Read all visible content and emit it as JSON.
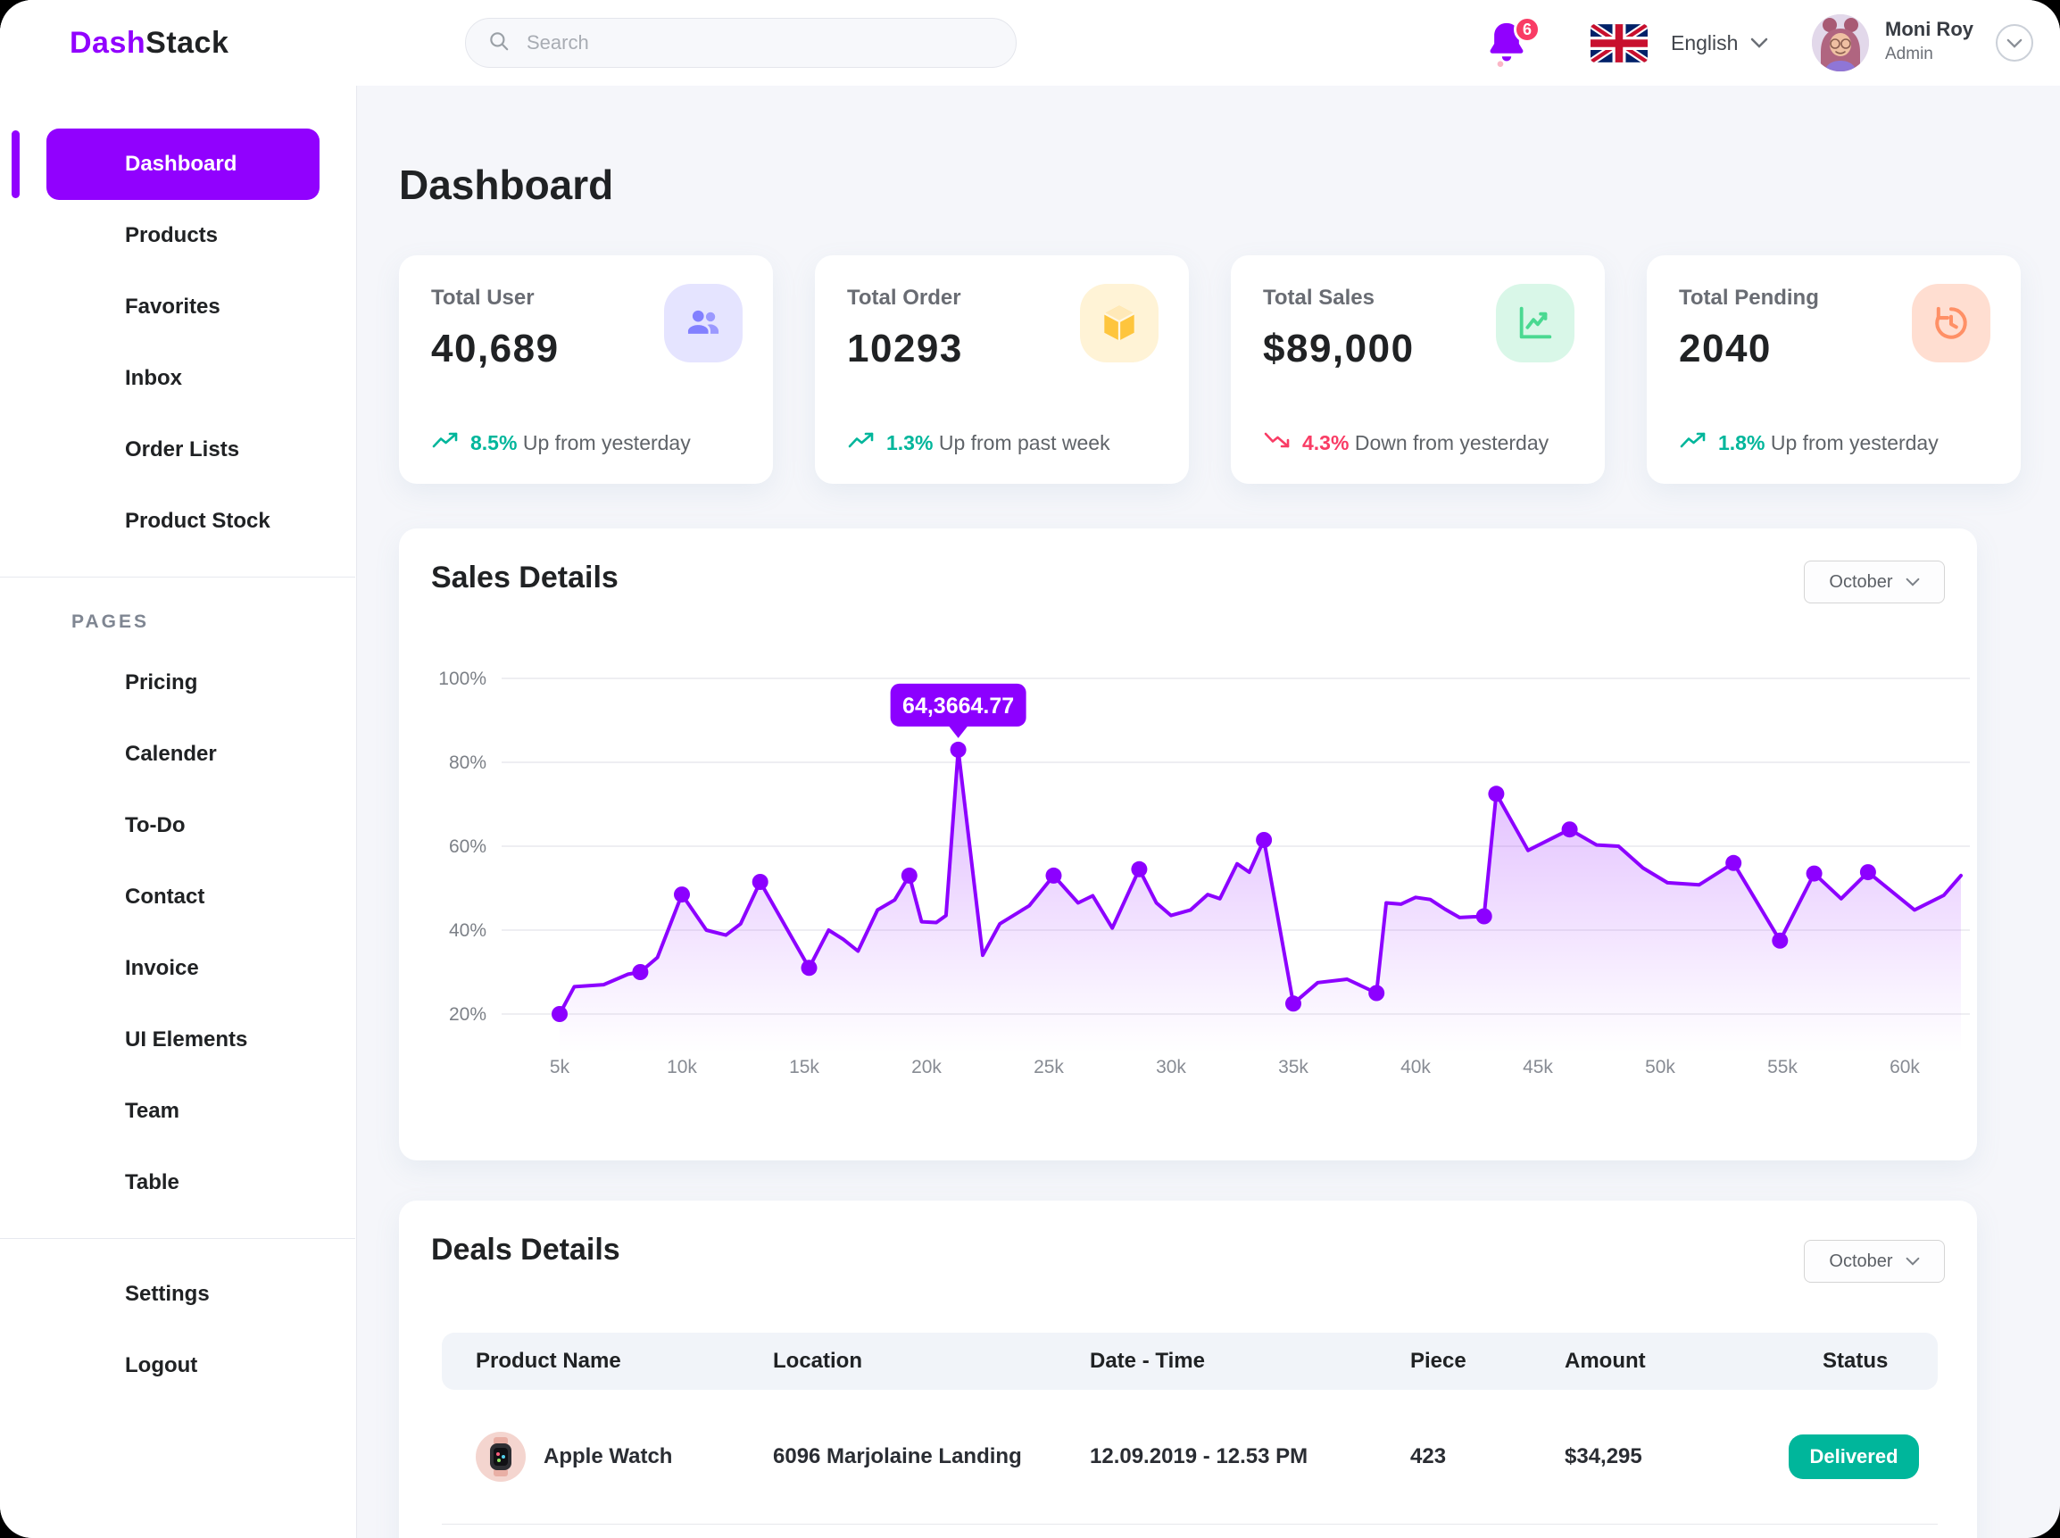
{
  "colors": {
    "accent": "#9101FE",
    "chart_line": "#8C00FF",
    "page_bg": "#F5F6FA",
    "surface": "#FFFFFF",
    "trend_up": "#00B69B",
    "trend_down": "#F93C65",
    "status_delivered": "#00B69B",
    "table_header_bg": "#F1F4F9",
    "text_dark": "#202224",
    "text_gray": "#5F6368"
  },
  "header": {
    "logo_part1": "Dash",
    "logo_part2": "Stack",
    "search_placeholder": "Search",
    "notification_count": "6",
    "language": "English",
    "user": {
      "name": "Moni Roy",
      "role": "Admin"
    }
  },
  "sidebar": {
    "main_items": [
      {
        "label": "Dashboard",
        "active": true
      },
      {
        "label": "Products",
        "active": false
      },
      {
        "label": "Favorites",
        "active": false
      },
      {
        "label": "Inbox",
        "active": false
      },
      {
        "label": "Order Lists",
        "active": false
      },
      {
        "label": "Product Stock",
        "active": false
      }
    ],
    "section_label": "PAGES",
    "page_items": [
      {
        "label": "Pricing"
      },
      {
        "label": "Calender"
      },
      {
        "label": "To-Do"
      },
      {
        "label": "Contact"
      },
      {
        "label": "Invoice"
      },
      {
        "label": "UI Elements"
      },
      {
        "label": "Team"
      },
      {
        "label": "Table"
      }
    ],
    "footer_items": [
      {
        "label": "Settings"
      },
      {
        "label": "Logout"
      }
    ]
  },
  "page": {
    "title": "Dashboard"
  },
  "stat_cards": [
    {
      "label": "Total User",
      "value": "40,689",
      "icon": "users-icon",
      "icon_bg": "#E5E4FF",
      "icon_color": "#8280FF",
      "trend": {
        "direction": "up",
        "percent": "8.5%",
        "text": "Up from yesterday",
        "color": "#00B69B"
      }
    },
    {
      "label": "Total Order",
      "value": "10293",
      "icon": "box-icon",
      "icon_bg": "#FFF3D6",
      "icon_color": "#FEC53D",
      "trend": {
        "direction": "up",
        "percent": "1.3%",
        "text": "Up from past week",
        "color": "#00B69B"
      }
    },
    {
      "label": "Total Sales",
      "value": "$89,000",
      "icon": "chart-line-icon",
      "icon_bg": "#D9F7E8",
      "icon_color": "#4AD991",
      "trend": {
        "direction": "down",
        "percent": "4.3%",
        "text": "Down from yesterday",
        "color": "#F93C65"
      }
    },
    {
      "label": "Total Pending",
      "value": "2040",
      "icon": "history-clock-icon",
      "icon_bg": "#FFDED1",
      "icon_color": "#FF9066",
      "trend": {
        "direction": "up",
        "percent": "1.8%",
        "text": "Up from yesterday",
        "color": "#00B69B"
      }
    }
  ],
  "sales_section": {
    "title": "Sales Details",
    "period": "October"
  },
  "chart_data": {
    "type": "area",
    "title": "Sales Details",
    "x_unit": "thousands",
    "x_tick_values": [
      5,
      10,
      15,
      20,
      25,
      30,
      35,
      40,
      45,
      50,
      55,
      60
    ],
    "x_ticks": [
      "5k",
      "10k",
      "15k",
      "20k",
      "25k",
      "30k",
      "35k",
      "40k",
      "45k",
      "50k",
      "55k",
      "60k"
    ],
    "y_tick_values": [
      20,
      40,
      60,
      80,
      100
    ],
    "y_ticks": [
      "20%",
      "40%",
      "60%",
      "80%",
      "100%"
    ],
    "ylim": [
      20,
      100
    ],
    "grid": true,
    "legend": false,
    "tooltip": {
      "point_x": 21.3,
      "label": "64,3664.77"
    },
    "points": [
      {
        "x": 5,
        "y": 20,
        "dot": true
      },
      {
        "x": 5.6,
        "y": 26.5,
        "dot": false
      },
      {
        "x": 6.8,
        "y": 27,
        "dot": false
      },
      {
        "x": 7.8,
        "y": 29.5,
        "dot": false
      },
      {
        "x": 8.3,
        "y": 30,
        "dot": true
      },
      {
        "x": 9,
        "y": 33.5,
        "dot": false
      },
      {
        "x": 10,
        "y": 48.5,
        "dot": true
      },
      {
        "x": 11,
        "y": 40,
        "dot": false
      },
      {
        "x": 11.8,
        "y": 38.8,
        "dot": false
      },
      {
        "x": 12.4,
        "y": 41.5,
        "dot": false
      },
      {
        "x": 13.2,
        "y": 51.5,
        "dot": true
      },
      {
        "x": 15.2,
        "y": 31,
        "dot": true
      },
      {
        "x": 16,
        "y": 40,
        "dot": false
      },
      {
        "x": 16.6,
        "y": 37.8,
        "dot": false
      },
      {
        "x": 17.2,
        "y": 35,
        "dot": false
      },
      {
        "x": 18,
        "y": 44.8,
        "dot": false
      },
      {
        "x": 18.7,
        "y": 47.2,
        "dot": false
      },
      {
        "x": 19.3,
        "y": 53,
        "dot": true
      },
      {
        "x": 19.8,
        "y": 42,
        "dot": false
      },
      {
        "x": 20.4,
        "y": 41.8,
        "dot": false
      },
      {
        "x": 20.8,
        "y": 43.5,
        "dot": false
      },
      {
        "x": 21.3,
        "y": 83,
        "dot": true
      },
      {
        "x": 22.3,
        "y": 34,
        "dot": false
      },
      {
        "x": 23,
        "y": 41.5,
        "dot": false
      },
      {
        "x": 24.2,
        "y": 45.8,
        "dot": false
      },
      {
        "x": 25.2,
        "y": 53,
        "dot": true
      },
      {
        "x": 26.2,
        "y": 46.5,
        "dot": false
      },
      {
        "x": 26.8,
        "y": 48.2,
        "dot": false
      },
      {
        "x": 27.6,
        "y": 40.5,
        "dot": false
      },
      {
        "x": 28.7,
        "y": 54.5,
        "dot": true
      },
      {
        "x": 29.4,
        "y": 46.5,
        "dot": false
      },
      {
        "x": 30,
        "y": 43.5,
        "dot": false
      },
      {
        "x": 30.8,
        "y": 44.8,
        "dot": false
      },
      {
        "x": 31.5,
        "y": 48.5,
        "dot": false
      },
      {
        "x": 32,
        "y": 47.5,
        "dot": false
      },
      {
        "x": 32.7,
        "y": 55.8,
        "dot": false
      },
      {
        "x": 33.2,
        "y": 53.8,
        "dot": false
      },
      {
        "x": 33.8,
        "y": 61.5,
        "dot": true
      },
      {
        "x": 35,
        "y": 22.5,
        "dot": true
      },
      {
        "x": 36,
        "y": 27.5,
        "dot": false
      },
      {
        "x": 37.2,
        "y": 28.3,
        "dot": false
      },
      {
        "x": 38.4,
        "y": 25,
        "dot": true
      },
      {
        "x": 38.8,
        "y": 46.5,
        "dot": false
      },
      {
        "x": 39.4,
        "y": 46.2,
        "dot": false
      },
      {
        "x": 40,
        "y": 47.8,
        "dot": false
      },
      {
        "x": 40.6,
        "y": 47.3,
        "dot": false
      },
      {
        "x": 41.2,
        "y": 45,
        "dot": false
      },
      {
        "x": 41.8,
        "y": 43,
        "dot": false
      },
      {
        "x": 42.8,
        "y": 43.3,
        "dot": true
      },
      {
        "x": 43.3,
        "y": 72.5,
        "dot": true
      },
      {
        "x": 44.6,
        "y": 59,
        "dot": false
      },
      {
        "x": 46.3,
        "y": 64,
        "dot": true
      },
      {
        "x": 47.4,
        "y": 60.3,
        "dot": false
      },
      {
        "x": 48.3,
        "y": 60,
        "dot": false
      },
      {
        "x": 49.3,
        "y": 54.8,
        "dot": false
      },
      {
        "x": 50.3,
        "y": 51.3,
        "dot": false
      },
      {
        "x": 51.6,
        "y": 50.8,
        "dot": false
      },
      {
        "x": 53,
        "y": 56,
        "dot": true
      },
      {
        "x": 54.9,
        "y": 37.5,
        "dot": true
      },
      {
        "x": 56.3,
        "y": 53.5,
        "dot": true
      },
      {
        "x": 57.4,
        "y": 47.5,
        "dot": false
      },
      {
        "x": 58.5,
        "y": 53.8,
        "dot": true
      },
      {
        "x": 60.4,
        "y": 44.8,
        "dot": false
      },
      {
        "x": 61.6,
        "y": 48.3,
        "dot": false
      },
      {
        "x": 62.3,
        "y": 53,
        "dot": false
      }
    ]
  },
  "deals_section": {
    "title": "Deals Details",
    "period": "October",
    "columns": [
      "Product Name",
      "Location",
      "Date - Time",
      "Piece",
      "Amount",
      "Status"
    ],
    "rows": [
      {
        "product": "Apple Watch",
        "location": "6096 Marjolaine Landing",
        "datetime": "12.09.2019 - 12.53 PM",
        "piece": "423",
        "amount": "$34,295",
        "status": "Delivered"
      }
    ]
  }
}
